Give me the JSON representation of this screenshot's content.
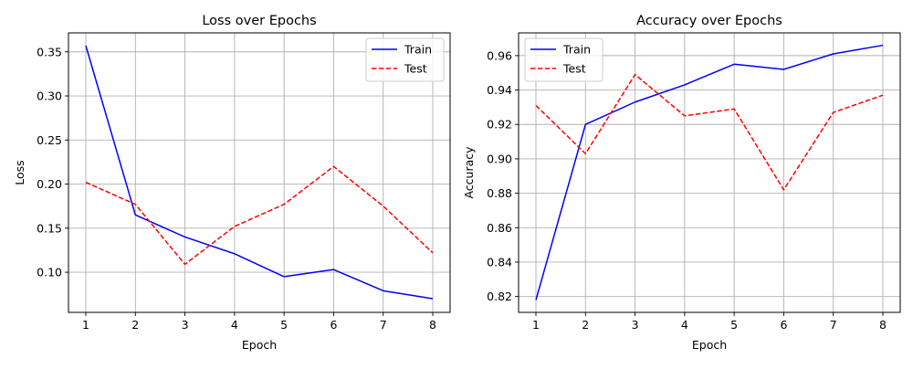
{
  "chart_data": [
    {
      "type": "line",
      "title": "Loss over Epochs",
      "xlabel": "Epoch",
      "ylabel": "Loss",
      "x": [
        1,
        2,
        3,
        4,
        5,
        6,
        7,
        8
      ],
      "xlim": [
        0.65,
        8.35
      ],
      "ylim": [
        0.0545,
        0.3715
      ],
      "xticks": [
        1,
        2,
        3,
        4,
        5,
        6,
        7,
        8
      ],
      "xtick_labels": [
        "1",
        "2",
        "3",
        "4",
        "5",
        "6",
        "7",
        "8"
      ],
      "yticks": [
        0.1,
        0.15,
        0.2,
        0.25,
        0.3,
        0.35
      ],
      "ytick_labels": [
        "0.10",
        "0.15",
        "0.20",
        "0.25",
        "0.30",
        "0.35"
      ],
      "grid": true,
      "legend_position": "top-right",
      "series": [
        {
          "name": "Train",
          "color": "#0000ff",
          "style": "solid",
          "values": [
            0.357,
            0.165,
            0.14,
            0.121,
            0.095,
            0.103,
            0.079,
            0.07
          ]
        },
        {
          "name": "Test",
          "color": "#ff0000",
          "style": "dashed",
          "values": [
            0.202,
            0.177,
            0.109,
            0.152,
            0.177,
            0.22,
            0.175,
            0.122
          ]
        }
      ]
    },
    {
      "type": "line",
      "title": "Accuracy over Epochs",
      "xlabel": "Epoch",
      "ylabel": "Accuracy",
      "x": [
        1,
        2,
        3,
        4,
        5,
        6,
        7,
        8
      ],
      "xlim": [
        0.65,
        8.35
      ],
      "ylim": [
        0.8108,
        0.9732
      ],
      "xticks": [
        1,
        2,
        3,
        4,
        5,
        6,
        7,
        8
      ],
      "xtick_labels": [
        "1",
        "2",
        "3",
        "4",
        "5",
        "6",
        "7",
        "8"
      ],
      "yticks": [
        0.82,
        0.84,
        0.86,
        0.88,
        0.9,
        0.92,
        0.94,
        0.96
      ],
      "ytick_labels": [
        "0.82",
        "0.84",
        "0.86",
        "0.88",
        "0.90",
        "0.92",
        "0.94",
        "0.96"
      ],
      "grid": true,
      "legend_position": "top-left",
      "series": [
        {
          "name": "Train",
          "color": "#0000ff",
          "style": "solid",
          "values": [
            0.818,
            0.92,
            0.933,
            0.943,
            0.955,
            0.952,
            0.961,
            0.966
          ]
        },
        {
          "name": "Test",
          "color": "#ff0000",
          "style": "dashed",
          "values": [
            0.931,
            0.903,
            0.949,
            0.925,
            0.929,
            0.882,
            0.927,
            0.937
          ]
        }
      ]
    }
  ]
}
